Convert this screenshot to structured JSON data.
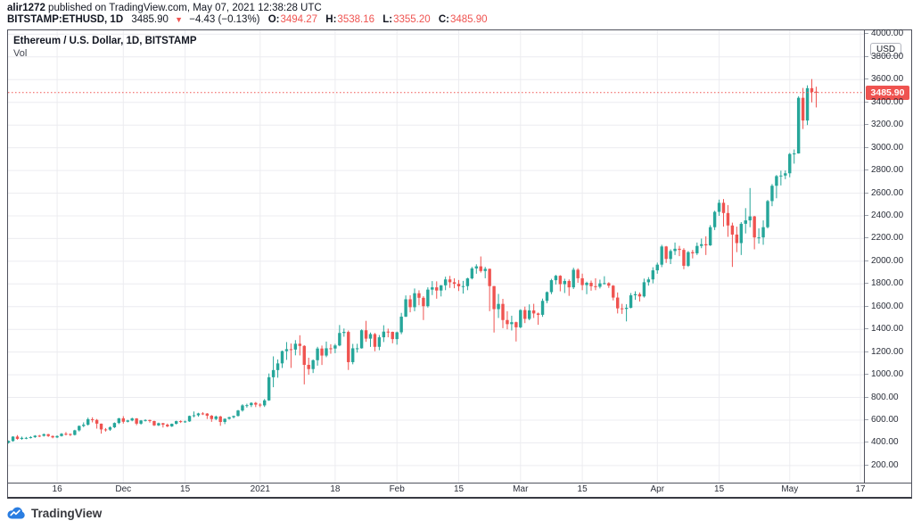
{
  "header": {
    "line1": {
      "user": "alir1272",
      "rest": " published on TradingView.com, May 07, 2021 12:38:28 UTC"
    },
    "line2": {
      "symbol": "BITSTAMP:ETHUSD, 1D",
      "last": "3485.90",
      "direction_icon": "▼",
      "change": "−4.43 (−0.13%)",
      "o_label": "O:",
      "o_value": "3494.27",
      "h_label": "H:",
      "h_value": "3538.16",
      "l_label": "L:",
      "l_value": "3355.20",
      "c_label": "C:",
      "c_value": "3485.90"
    }
  },
  "chart": {
    "title": "Ethereum / U.S. Dollar, 1D, BITSTAMP",
    "indicator_label": "Vol",
    "axis_currency": "USD",
    "price_tag": "3485.90",
    "colors": {
      "up": "#26a69a",
      "down": "#ef5350",
      "price_line": "#ef5350",
      "grid": "#ececf0",
      "axis_text": "#2a2e39",
      "frame": "#50535e"
    }
  },
  "footer": {
    "logo_text": "TradingView"
  },
  "chart_data": {
    "type": "candlestick",
    "title": "Ethereum / U.S. Dollar, 1D, BITSTAMP",
    "symbol": "BITSTAMP:ETHUSD",
    "interval": "1D",
    "start_date": "2020-11-05",
    "last_price": 3485.9,
    "y_axis": {
      "min": 50,
      "max": 4060,
      "tick_interval": 200,
      "unit": "USD",
      "tick_labels": [
        "4000.00",
        "3800.00",
        "3600.00",
        "3400.00",
        "3200.00",
        "3000.00",
        "2800.00",
        "2600.00",
        "2400.00",
        "2200.00",
        "2000.00",
        "1800.00",
        "1600.00",
        "1400.00",
        "1200.00",
        "1000.00",
        "800.00",
        "600.00",
        "400.00",
        "200.00"
      ]
    },
    "x_ticks": [
      {
        "label": "16",
        "day": 11
      },
      {
        "label": "Dec",
        "day": 26
      },
      {
        "label": "15",
        "day": 40
      },
      {
        "label": "2021",
        "day": 57
      },
      {
        "label": "18",
        "day": 74
      },
      {
        "label": "Feb",
        "day": 88
      },
      {
        "label": "15",
        "day": 102
      },
      {
        "label": "Mar",
        "day": 116
      },
      {
        "label": "15",
        "day": 130
      },
      {
        "label": "Apr",
        "day": 147
      },
      {
        "label": "15",
        "day": 161
      },
      {
        "label": "May",
        "day": 177
      },
      {
        "label": "17",
        "day": 193
      }
    ],
    "candles": [
      [
        402,
        421,
        394,
        416
      ],
      [
        416,
        458,
        410,
        455
      ],
      [
        455,
        468,
        428,
        435
      ],
      [
        435,
        455,
        427,
        444
      ],
      [
        444,
        452,
        432,
        444
      ],
      [
        444,
        459,
        438,
        450
      ],
      [
        450,
        468,
        444,
        463
      ],
      [
        463,
        470,
        450,
        462
      ],
      [
        462,
        482,
        455,
        476
      ],
      [
        476,
        479,
        452,
        460
      ],
      [
        460,
        465,
        440,
        448
      ],
      [
        448,
        466,
        442,
        460
      ],
      [
        460,
        486,
        455,
        480
      ],
      [
        480,
        495,
        465,
        478
      ],
      [
        478,
        482,
        460,
        470
      ],
      [
        470,
        515,
        465,
        510
      ],
      [
        510,
        553,
        500,
        549
      ],
      [
        549,
        580,
        538,
        560
      ],
      [
        560,
        622,
        552,
        608
      ],
      [
        608,
        625,
        580,
        602
      ],
      [
        602,
        610,
        525,
        569
      ],
      [
        569,
        570,
        481,
        518
      ],
      [
        518,
        530,
        500,
        516
      ],
      [
        516,
        546,
        505,
        537
      ],
      [
        537,
        580,
        530,
        575
      ],
      [
        575,
        620,
        565,
        616
      ],
      [
        616,
        635,
        570,
        586
      ],
      [
        586,
        603,
        580,
        597
      ],
      [
        597,
        622,
        590,
        615
      ],
      [
        615,
        618,
        555,
        569
      ],
      [
        569,
        601,
        560,
        597
      ],
      [
        597,
        608,
        588,
        601
      ],
      [
        601,
        605,
        578,
        592
      ],
      [
        592,
        595,
        548,
        554
      ],
      [
        554,
        578,
        548,
        573
      ],
      [
        573,
        576,
        535,
        560
      ],
      [
        560,
        570,
        538,
        545
      ],
      [
        545,
        570,
        540,
        568
      ],
      [
        568,
        595,
        562,
        591
      ],
      [
        591,
        598,
        575,
        586
      ],
      [
        586,
        596,
        576,
        589
      ],
      [
        589,
        640,
        585,
        637
      ],
      [
        637,
        676,
        625,
        643
      ],
      [
        643,
        665,
        630,
        659
      ],
      [
        659,
        670,
        645,
        658
      ],
      [
        658,
        662,
        610,
        639
      ],
      [
        639,
        645,
        585,
        610
      ],
      [
        610,
        640,
        600,
        632
      ],
      [
        632,
        638,
        550,
        584
      ],
      [
        584,
        615,
        565,
        612
      ],
      [
        612,
        630,
        605,
        626
      ],
      [
        626,
        640,
        615,
        637
      ],
      [
        637,
        690,
        632,
        685
      ],
      [
        685,
        740,
        675,
        730
      ],
      [
        730,
        745,
        710,
        732
      ],
      [
        732,
        758,
        715,
        752
      ],
      [
        752,
        760,
        715,
        737
      ],
      [
        737,
        749,
        714,
        730
      ],
      [
        730,
        786,
        716,
        774
      ],
      [
        774,
        1011,
        770,
        978
      ],
      [
        978,
        1162,
        890,
        1041
      ],
      [
        1041,
        1135,
        974,
        1100
      ],
      [
        1100,
        1213,
        1060,
        1208
      ],
      [
        1208,
        1288,
        1131,
        1225
      ],
      [
        1225,
        1275,
        1060,
        1222
      ],
      [
        1222,
        1305,
        1171,
        1273
      ],
      [
        1273,
        1348,
        1170,
        1254
      ],
      [
        1254,
        1260,
        915,
        1087
      ],
      [
        1087,
        1150,
        1000,
        1050
      ],
      [
        1050,
        1135,
        1015,
        1128
      ],
      [
        1128,
        1246,
        1080,
        1231
      ],
      [
        1231,
        1257,
        1086,
        1169
      ],
      [
        1169,
        1292,
        1155,
        1233
      ],
      [
        1233,
        1269,
        1185,
        1231
      ],
      [
        1231,
        1272,
        1190,
        1258
      ],
      [
        1258,
        1438,
        1251,
        1368
      ],
      [
        1368,
        1407,
        1335,
        1377
      ],
      [
        1377,
        1390,
        1042,
        1111
      ],
      [
        1111,
        1272,
        1092,
        1233
      ],
      [
        1233,
        1273,
        1195,
        1233
      ],
      [
        1233,
        1400,
        1230,
        1392
      ],
      [
        1392,
        1475,
        1290,
        1318
      ],
      [
        1318,
        1372,
        1245,
        1358
      ],
      [
        1358,
        1368,
        1207,
        1246
      ],
      [
        1246,
        1350,
        1216,
        1330
      ],
      [
        1330,
        1436,
        1288,
        1380
      ],
      [
        1380,
        1406,
        1330,
        1378
      ],
      [
        1378,
        1380,
        1277,
        1314
      ],
      [
        1314,
        1380,
        1265,
        1374
      ],
      [
        1374,
        1545,
        1357,
        1512
      ],
      [
        1512,
        1699,
        1508,
        1665
      ],
      [
        1665,
        1700,
        1550,
        1595
      ],
      [
        1595,
        1760,
        1560,
        1718
      ],
      [
        1718,
        1744,
        1612,
        1678
      ],
      [
        1678,
        1692,
        1482,
        1604
      ],
      [
        1604,
        1770,
        1592,
        1750
      ],
      [
        1750,
        1825,
        1702,
        1770
      ],
      [
        1770,
        1823,
        1670,
        1742
      ],
      [
        1742,
        1790,
        1690,
        1788
      ],
      [
        1788,
        1864,
        1745,
        1840
      ],
      [
        1840,
        1871,
        1765,
        1815
      ],
      [
        1815,
        1850,
        1762,
        1801
      ],
      [
        1801,
        1835,
        1738,
        1779
      ],
      [
        1779,
        1827,
        1715,
        1781
      ],
      [
        1781,
        1855,
        1745,
        1849
      ],
      [
        1849,
        1950,
        1840,
        1937
      ],
      [
        1937,
        1973,
        1890,
        1955
      ],
      [
        1955,
        2042,
        1900,
        1914
      ],
      [
        1914,
        1950,
        1850,
        1933
      ],
      [
        1933,
        1936,
        1560,
        1781
      ],
      [
        1781,
        1782,
        1372,
        1578
      ],
      [
        1578,
        1712,
        1500,
        1624
      ],
      [
        1624,
        1669,
        1410,
        1482
      ],
      [
        1482,
        1560,
        1400,
        1446
      ],
      [
        1446,
        1520,
        1390,
        1463
      ],
      [
        1463,
        1468,
        1293,
        1418
      ],
      [
        1418,
        1577,
        1410,
        1570
      ],
      [
        1570,
        1600,
        1455,
        1492
      ],
      [
        1492,
        1620,
        1480,
        1567
      ],
      [
        1567,
        1625,
        1500,
        1540
      ],
      [
        1540,
        1548,
        1440,
        1528
      ],
      [
        1528,
        1671,
        1510,
        1651
      ],
      [
        1651,
        1734,
        1630,
        1728
      ],
      [
        1728,
        1845,
        1710,
        1833
      ],
      [
        1833,
        1880,
        1795,
        1872
      ],
      [
        1872,
        1877,
        1735,
        1798
      ],
      [
        1798,
        1846,
        1720,
        1826
      ],
      [
        1826,
        1840,
        1695,
        1770
      ],
      [
        1770,
        1943,
        1755,
        1925
      ],
      [
        1925,
        1938,
        1810,
        1850
      ],
      [
        1850,
        1891,
        1745,
        1790
      ],
      [
        1790,
        1820,
        1710,
        1810
      ],
      [
        1810,
        1830,
        1740,
        1780
      ],
      [
        1780,
        1850,
        1745,
        1775
      ],
      [
        1775,
        1838,
        1760,
        1805
      ],
      [
        1805,
        1868,
        1795,
        1807
      ],
      [
        1807,
        1815,
        1765,
        1785
      ],
      [
        1785,
        1790,
        1655,
        1680
      ],
      [
        1680,
        1725,
        1540,
        1585
      ],
      [
        1585,
        1625,
        1536,
        1580
      ],
      [
        1580,
        1621,
        1470,
        1590
      ],
      [
        1590,
        1720,
        1585,
        1700
      ],
      [
        1700,
        1736,
        1660,
        1710
      ],
      [
        1710,
        1725,
        1645,
        1690
      ],
      [
        1690,
        1847,
        1680,
        1815
      ],
      [
        1815,
        1860,
        1785,
        1840
      ],
      [
        1840,
        1947,
        1805,
        1920
      ],
      [
        1920,
        1988,
        1890,
        1970
      ],
      [
        1970,
        2145,
        1948,
        2130
      ],
      [
        2130,
        2135,
        1985,
        2020
      ],
      [
        2020,
        2105,
        1975,
        2090
      ],
      [
        2090,
        2165,
        2055,
        2110
      ],
      [
        2110,
        2135,
        2045,
        2100
      ],
      [
        2100,
        2115,
        1930,
        1960
      ],
      [
        1960,
        2090,
        1950,
        2080
      ],
      [
        2080,
        2100,
        2025,
        2070
      ],
      [
        2070,
        2165,
        2055,
        2135
      ],
      [
        2135,
        2200,
        2115,
        2150
      ],
      [
        2150,
        2220,
        2055,
        2140
      ],
      [
        2140,
        2318,
        2135,
        2300
      ],
      [
        2300,
        2445,
        2275,
        2435
      ],
      [
        2435,
        2543,
        2400,
        2515
      ],
      [
        2515,
        2548,
        2305,
        2425
      ],
      [
        2425,
        2495,
        2215,
        2315
      ],
      [
        2315,
        2340,
        1950,
        2235
      ],
      [
        2235,
        2305,
        2080,
        2160
      ],
      [
        2160,
        2345,
        2055,
        2330
      ],
      [
        2330,
        2468,
        2245,
        2360
      ],
      [
        2360,
        2645,
        2300,
        2395
      ],
      [
        2395,
        2400,
        2105,
        2210
      ],
      [
        2210,
        2290,
        2155,
        2210
      ],
      [
        2210,
        2360,
        2145,
        2300
      ],
      [
        2300,
        2540,
        2290,
        2530
      ],
      [
        2530,
        2680,
        2485,
        2665
      ],
      [
        2665,
        2760,
        2555,
        2750
      ],
      [
        2750,
        2798,
        2668,
        2755
      ],
      [
        2755,
        2800,
        2723,
        2775
      ],
      [
        2775,
        2954,
        2740,
        2945
      ],
      [
        2945,
        2985,
        2860,
        2950
      ],
      [
        2950,
        3454,
        2948,
        3440
      ],
      [
        3440,
        3527,
        3165,
        3240
      ],
      [
        3240,
        3550,
        3200,
        3525
      ],
      [
        3525,
        3605,
        3400,
        3490
      ],
      [
        3494.27,
        3538.16,
        3355.2,
        3485.9
      ]
    ]
  }
}
